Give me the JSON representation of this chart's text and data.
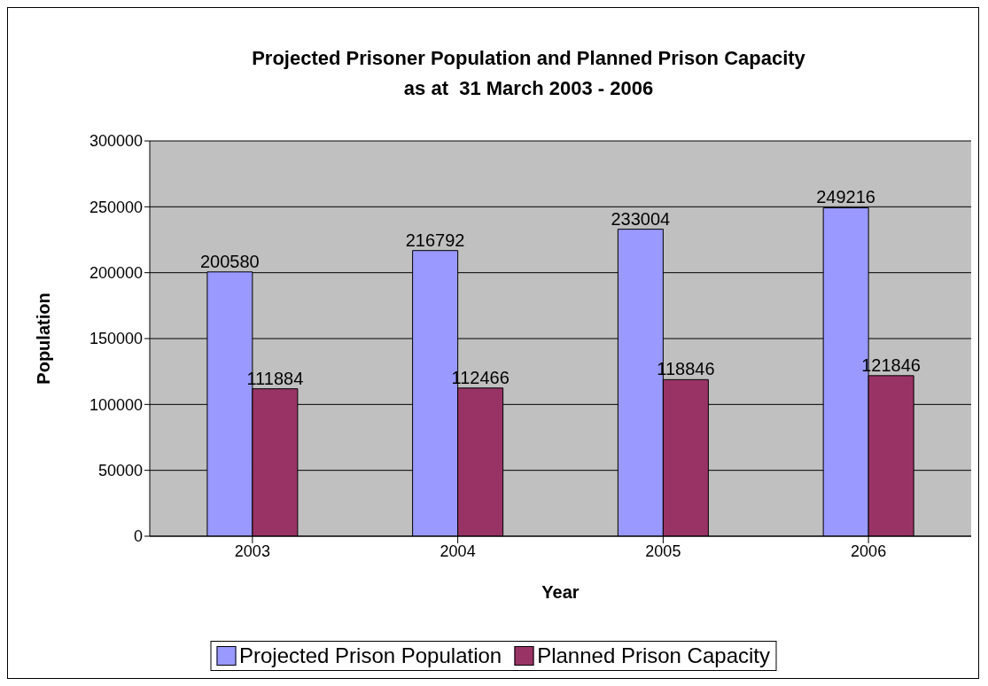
{
  "chart_data": {
    "type": "bar",
    "title": "Projected Prisoner Population and Planned Prison Capacity",
    "subtitle": "as at  31 March 2003 - 2006",
    "xlabel": "Year",
    "ylabel": "Population",
    "categories": [
      "2003",
      "2004",
      "2005",
      "2006"
    ],
    "series": [
      {
        "name": "Projected Prison Population",
        "color": "#9999ff",
        "values": [
          200580,
          216792,
          233004,
          249216
        ]
      },
      {
        "name": "Planned Prison Capacity",
        "color": "#993366",
        "values": [
          111884,
          112466,
          118846,
          121846
        ]
      }
    ],
    "ylim": [
      0,
      300000
    ],
    "yticks": [
      0,
      50000,
      100000,
      150000,
      200000,
      250000,
      300000
    ],
    "grid": "y",
    "legend": "bottom",
    "data_labels": true
  }
}
